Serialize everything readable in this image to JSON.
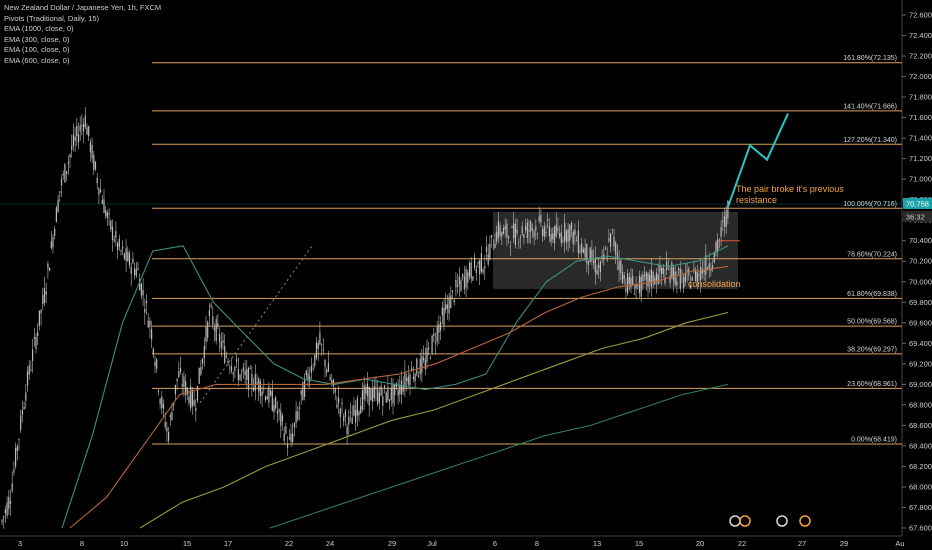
{
  "legend": {
    "symbol": "New Zealand Dollar / Japanese Yen, 1h, FXCM",
    "indicators": [
      "Pivots (Traditional, Daily, 15)",
      "EMA (1000, close, 0)",
      "EMA (300, close, 0)",
      "EMA (100, close, 0)",
      "EMA (600, close, 0)"
    ]
  },
  "colors": {
    "background": "#000000",
    "candle": "#bdbdbd",
    "fib_line": "#d9a35f",
    "ema100": "#3e8f82",
    "ema300": "#b8643a",
    "ema600": "#9a9a3a",
    "ema1000": "#2f7d57",
    "projection": "#27c6c9",
    "annotation": "#f4a340",
    "box": "#4a4a4a",
    "price_tag": "#1aa3a8",
    "timer_tag": "#2a2a2a"
  },
  "chart_data": {
    "type": "candlestick",
    "ylim": [
      67.6,
      72.6
    ],
    "y_ticks": [
      "72.600",
      "72.400",
      "72.200",
      "72.000",
      "71.800",
      "71.600",
      "71.400",
      "71.200",
      "71.000",
      "70.800",
      "70.600",
      "70.400",
      "70.200",
      "70.000",
      "69.800",
      "69.600",
      "69.400",
      "69.200",
      "69.000",
      "68.800",
      "68.600",
      "68.400",
      "68.200",
      "68.000",
      "67.800",
      "67.600"
    ],
    "x_ticks": [
      "3",
      "8",
      "10",
      "15",
      "17",
      "22",
      "24",
      "29",
      "Jul",
      "6",
      "8",
      "13",
      "15",
      "20",
      "22",
      "27",
      "29",
      "Au"
    ],
    "fib_levels": [
      {
        "label": "0.00%(68.419)",
        "value": 68.419
      },
      {
        "label": "23.60%(68.961)",
        "value": 68.961
      },
      {
        "label": "38.20%(69.297)",
        "value": 69.297
      },
      {
        "label": "50.00%(69.568)",
        "value": 69.568
      },
      {
        "label": "61.80%(69.838)",
        "value": 69.838
      },
      {
        "label": "78.60%(70.224)",
        "value": 70.224
      },
      {
        "label": "100.00%(70.716)",
        "value": 70.716
      },
      {
        "label": "127.20%(71.340)",
        "value": 71.34
      },
      {
        "label": "141.40%(71.666)",
        "value": 71.666
      },
      {
        "label": "161.80%(72.135)",
        "value": 72.135
      }
    ],
    "current_price": "70.758",
    "countdown": "36:32",
    "projection_path": [
      70.73,
      71.33,
      71.19,
      71.64
    ],
    "consolidation_range": [
      69.93,
      70.68
    ],
    "annotations": {
      "breakout": [
        "The pair broke it's previous",
        "resistance"
      ],
      "consolidation": "consolidation"
    },
    "ema_series": {
      "ema100": [
        67.6,
        68.5,
        69.6,
        70.3,
        70.35,
        69.8,
        69.5,
        69.2,
        69.05,
        69.0,
        69.05,
        69.0,
        68.95,
        69.0,
        69.1,
        69.6,
        70.0,
        70.2,
        70.25,
        70.2,
        70.15,
        70.2,
        70.35
      ],
      "ema300": [
        67.6,
        67.9,
        68.4,
        68.9,
        69.0,
        69.0,
        69.0,
        69.0,
        69.05,
        69.1,
        69.2,
        69.35,
        69.5,
        69.7,
        69.85,
        69.95,
        70.0,
        70.1,
        70.15
      ],
      "ema600": [
        67.6,
        67.85,
        68.0,
        68.2,
        68.35,
        68.5,
        68.65,
        68.75,
        68.9,
        69.05,
        69.2,
        69.35,
        69.45,
        69.6,
        69.7
      ],
      "ema1000": [
        67.6,
        67.75,
        67.9,
        68.05,
        68.2,
        68.35,
        68.5,
        68.6,
        68.75,
        68.9,
        69.0
      ]
    }
  }
}
